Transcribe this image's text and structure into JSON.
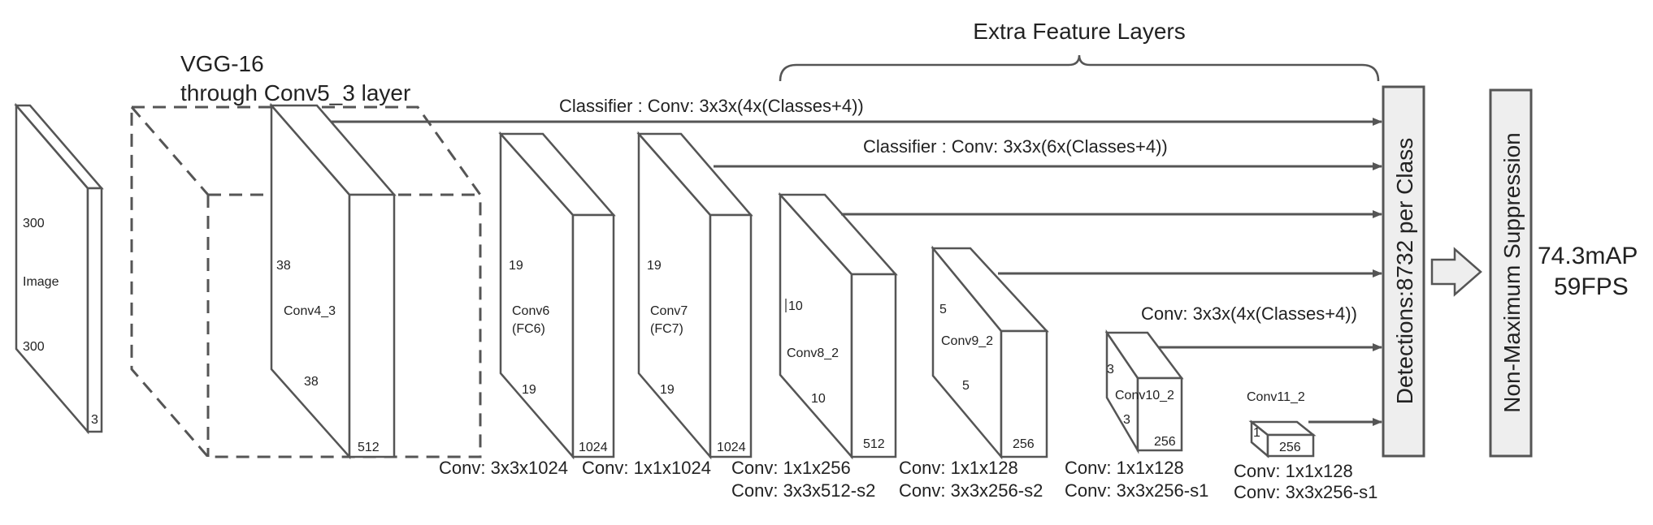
{
  "image_block": {
    "dim1": "300",
    "name": "Image",
    "dim2": "300",
    "depth": "3"
  },
  "vgg": {
    "line1": "VGG-16",
    "line2": "through Conv5_3 layer"
  },
  "conv4_3": {
    "dim1": "38",
    "name": "Conv4_3",
    "dim2": "38",
    "depth": "512"
  },
  "conv6": {
    "dim1": "19",
    "name": "Conv6",
    "sub": "(FC6)",
    "dim2": "19",
    "depth": "1024"
  },
  "conv7": {
    "dim1": "19",
    "name": "Conv7",
    "sub": "(FC7)",
    "dim2": "19",
    "depth": "1024"
  },
  "conv8_2": {
    "dim1": "10",
    "name": "Conv8_2",
    "dim2": "10",
    "depth": "512"
  },
  "conv9_2": {
    "dim1": "5",
    "name": "Conv9_2",
    "dim2": "5",
    "depth": "256"
  },
  "conv10_2": {
    "dim1": "3",
    "name": "Conv10_2",
    "dim2": "3",
    "depth": "256"
  },
  "conv11_2": {
    "name": "Conv11_2",
    "dim": "1",
    "depth": "256"
  },
  "extra_feature_layers": "Extra Feature Layers",
  "classifier_1": "Classifier : Conv: 3x3x(4x(Classes+4))",
  "classifier_2": "Classifier : Conv: 3x3x(6x(Classes+4))",
  "classifier_3": "Conv: 3x3x(4x(Classes+4))",
  "bottom_labels": {
    "conv6": "Conv: 3x3x1024",
    "conv7": "Conv: 1x1x1024",
    "conv8_a": "Conv: 1x1x256",
    "conv8_b": "Conv:  3x3x512-s2",
    "conv9_a": "Conv: 1x1x128",
    "conv9_b": "Conv: 3x3x256-s2",
    "conv10_a": "Conv: 1x1x128",
    "conv10_b": "Conv: 3x3x256-s1",
    "conv11_a": "Conv: 1x1x128",
    "conv11_b": "Conv: 3x3x256-s1"
  },
  "detections": "Detections:8732  per Class",
  "nms": "Non-Maximum Suppression",
  "result": {
    "map": "74.3mAP",
    "fps": "59FPS"
  },
  "colors": {
    "stroke": "#555555",
    "box_fill": "#eeeeee",
    "text": "#222222"
  }
}
